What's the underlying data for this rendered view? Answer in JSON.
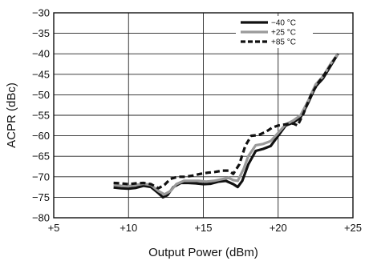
{
  "chart_data": {
    "type": "line",
    "xlabel": "Output Power (dBm)",
    "ylabel": "ACPR (dBc)",
    "xlim": [
      5,
      25
    ],
    "ylim": [
      -80,
      -30
    ],
    "x_ticks": [
      5,
      10,
      15,
      20,
      25
    ],
    "x_tick_labels": [
      "+5",
      "+10",
      "+15",
      "+20",
      "+25"
    ],
    "y_ticks": [
      -80,
      -75,
      -70,
      -65,
      -60,
      -55,
      -50,
      -45,
      -40,
      -35,
      -30
    ],
    "y_tick_labels": [
      "−80",
      "−75",
      "−70",
      "−65",
      "−60",
      "−55",
      "−50",
      "−45",
      "−40",
      "−35",
      "−30"
    ],
    "grid": true,
    "legend_position": "top-right",
    "series": [
      {
        "name": "−40 °C",
        "color": "#111111",
        "style": "solid",
        "points": [
          [
            9.0,
            -72.6
          ],
          [
            9.5,
            -72.8
          ],
          [
            10.0,
            -72.9
          ],
          [
            10.5,
            -72.7
          ],
          [
            11.0,
            -72.2
          ],
          [
            11.5,
            -72.5
          ],
          [
            12.0,
            -74.0
          ],
          [
            12.3,
            -75.0
          ],
          [
            12.6,
            -74.5
          ],
          [
            13.0,
            -72.5
          ],
          [
            13.5,
            -71.5
          ],
          [
            14.0,
            -71.5
          ],
          [
            14.5,
            -71.6
          ],
          [
            15.0,
            -71.8
          ],
          [
            15.5,
            -71.7
          ],
          [
            16.0,
            -71.2
          ],
          [
            16.5,
            -71.0
          ],
          [
            17.0,
            -71.8
          ],
          [
            17.3,
            -72.5
          ],
          [
            17.6,
            -71.0
          ],
          [
            18.0,
            -67.0
          ],
          [
            18.5,
            -63.7
          ],
          [
            19.0,
            -63.2
          ],
          [
            19.5,
            -62.5
          ],
          [
            20.0,
            -60.0
          ],
          [
            20.5,
            -57.5
          ],
          [
            21.0,
            -56.8
          ],
          [
            21.5,
            -55.5
          ],
          [
            22.0,
            -52.0
          ],
          [
            22.5,
            -48.0
          ],
          [
            23.0,
            -46.0
          ],
          [
            23.5,
            -43.0
          ],
          [
            24.0,
            -40.0
          ]
        ]
      },
      {
        "name": "+25 °C",
        "color": "#9a9a9a",
        "style": "solid",
        "points": [
          [
            9.0,
            -72.0
          ],
          [
            9.5,
            -72.2
          ],
          [
            10.0,
            -72.3
          ],
          [
            10.5,
            -72.0
          ],
          [
            11.0,
            -71.7
          ],
          [
            11.5,
            -72.0
          ],
          [
            12.0,
            -73.5
          ],
          [
            12.4,
            -74.3
          ],
          [
            12.8,
            -73.5
          ],
          [
            13.2,
            -71.8
          ],
          [
            13.7,
            -71.0
          ],
          [
            14.2,
            -71.0
          ],
          [
            14.7,
            -71.0
          ],
          [
            15.2,
            -71.2
          ],
          [
            15.7,
            -71.0
          ],
          [
            16.2,
            -70.6
          ],
          [
            16.7,
            -70.3
          ],
          [
            17.0,
            -70.8
          ],
          [
            17.3,
            -71.0
          ],
          [
            17.7,
            -68.0
          ],
          [
            18.0,
            -65.0
          ],
          [
            18.5,
            -62.3
          ],
          [
            19.0,
            -62.0
          ],
          [
            19.5,
            -61.3
          ],
          [
            20.0,
            -59.3
          ],
          [
            20.5,
            -57.2
          ],
          [
            21.0,
            -56.3
          ],
          [
            21.5,
            -55.0
          ],
          [
            22.0,
            -51.5
          ],
          [
            22.5,
            -47.5
          ],
          [
            23.0,
            -45.5
          ],
          [
            23.5,
            -42.5
          ],
          [
            24.0,
            -40.0
          ]
        ]
      },
      {
        "name": "+85 °C",
        "color": "#111111",
        "style": "dashed",
        "points": [
          [
            9.0,
            -71.5
          ],
          [
            9.5,
            -71.6
          ],
          [
            10.0,
            -71.8
          ],
          [
            10.5,
            -71.6
          ],
          [
            11.0,
            -71.5
          ],
          [
            11.5,
            -71.8
          ],
          [
            12.0,
            -72.8
          ],
          [
            12.4,
            -72.0
          ],
          [
            12.8,
            -70.5
          ],
          [
            13.3,
            -70.0
          ],
          [
            13.8,
            -70.0
          ],
          [
            14.3,
            -69.7
          ],
          [
            14.8,
            -69.3
          ],
          [
            15.3,
            -69.0
          ],
          [
            15.8,
            -68.8
          ],
          [
            16.3,
            -68.5
          ],
          [
            16.7,
            -68.5
          ],
          [
            17.0,
            -69.3
          ],
          [
            17.4,
            -67.0
          ],
          [
            17.8,
            -62.5
          ],
          [
            18.2,
            -60.0
          ],
          [
            18.7,
            -59.8
          ],
          [
            19.2,
            -59.0
          ],
          [
            19.6,
            -58.0
          ],
          [
            20.0,
            -57.5
          ],
          [
            20.5,
            -57.2
          ],
          [
            21.0,
            -57.0
          ],
          [
            21.3,
            -57.5
          ],
          [
            21.7,
            -54.5
          ],
          [
            22.2,
            -50.0
          ],
          [
            22.7,
            -47.0
          ],
          [
            23.3,
            -44.0
          ],
          [
            24.0,
            -40.0
          ]
        ]
      }
    ]
  }
}
